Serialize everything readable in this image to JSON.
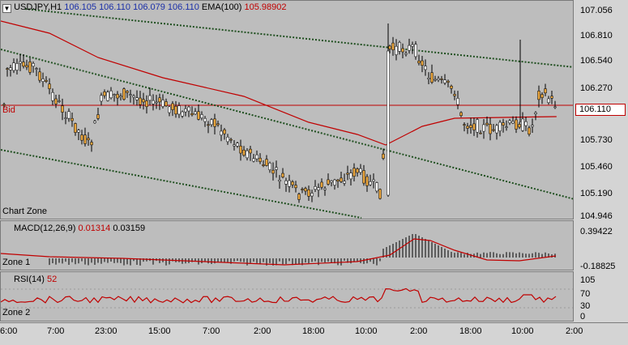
{
  "header": {
    "symbol": "USDJPY,H1",
    "open": "106.105",
    "high": "106.110",
    "low": "106.079",
    "close": "106.110",
    "ema_label": "EMA(100)",
    "ema_value": "105.98902"
  },
  "main": {
    "bid_label": "Bid",
    "bid_value": "106.110",
    "zone_label": "Chart Zone",
    "price_ticks": [
      "107.056",
      "106.810",
      "106.540",
      "106.270",
      "105.730",
      "105.460",
      "105.190",
      "104.946"
    ]
  },
  "macd": {
    "label": "MACD(12,26,9)",
    "value1": "0.01314",
    "value2": "0.03159",
    "zone_label": "Zone 1",
    "ticks": [
      "0.39422",
      "-0.18825"
    ]
  },
  "rsi": {
    "label": "RSI(14)",
    "value": "52",
    "zone_label": "Zone 2",
    "ticks": [
      "105",
      "70",
      "30",
      "0"
    ]
  },
  "time_axis": [
    "6:00",
    "7:00",
    "23:00",
    "15:00",
    "7:00",
    "2:00",
    "18:00",
    "10:00",
    "2:00",
    "18:00",
    "10:00",
    "2:00"
  ],
  "colors": {
    "bull": "#ffffff",
    "bear": "#e8a33a",
    "ema": "#c00000",
    "trend": "#1f4f1f",
    "bid": "#c00000"
  }
}
